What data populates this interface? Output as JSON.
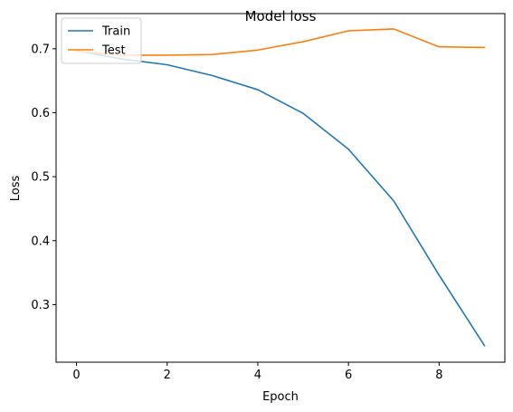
{
  "chart_data": {
    "type": "line",
    "title": "Model loss",
    "xlabel": "Epoch",
    "ylabel": "Loss",
    "x": [
      0,
      1,
      2,
      3,
      4,
      5,
      6,
      7,
      8,
      9
    ],
    "xlim": [
      -0.45,
      9.45
    ],
    "ylim": [
      0.21,
      0.755
    ],
    "xticks": [
      0,
      2,
      4,
      6,
      8
    ],
    "yticks": [
      0.3,
      0.4,
      0.5,
      0.6,
      0.7
    ],
    "grid": false,
    "legend_position": "top-left",
    "series": [
      {
        "name": "Train",
        "color": "#1f77b4",
        "values": [
          0.697,
          0.684,
          0.675,
          0.658,
          0.636,
          0.599,
          0.543,
          0.462,
          0.346,
          0.236
        ]
      },
      {
        "name": "Test",
        "color": "#ff7f0e",
        "values": [
          0.696,
          0.69,
          0.69,
          0.691,
          0.698,
          0.711,
          0.728,
          0.731,
          0.703,
          0.702
        ]
      }
    ]
  }
}
